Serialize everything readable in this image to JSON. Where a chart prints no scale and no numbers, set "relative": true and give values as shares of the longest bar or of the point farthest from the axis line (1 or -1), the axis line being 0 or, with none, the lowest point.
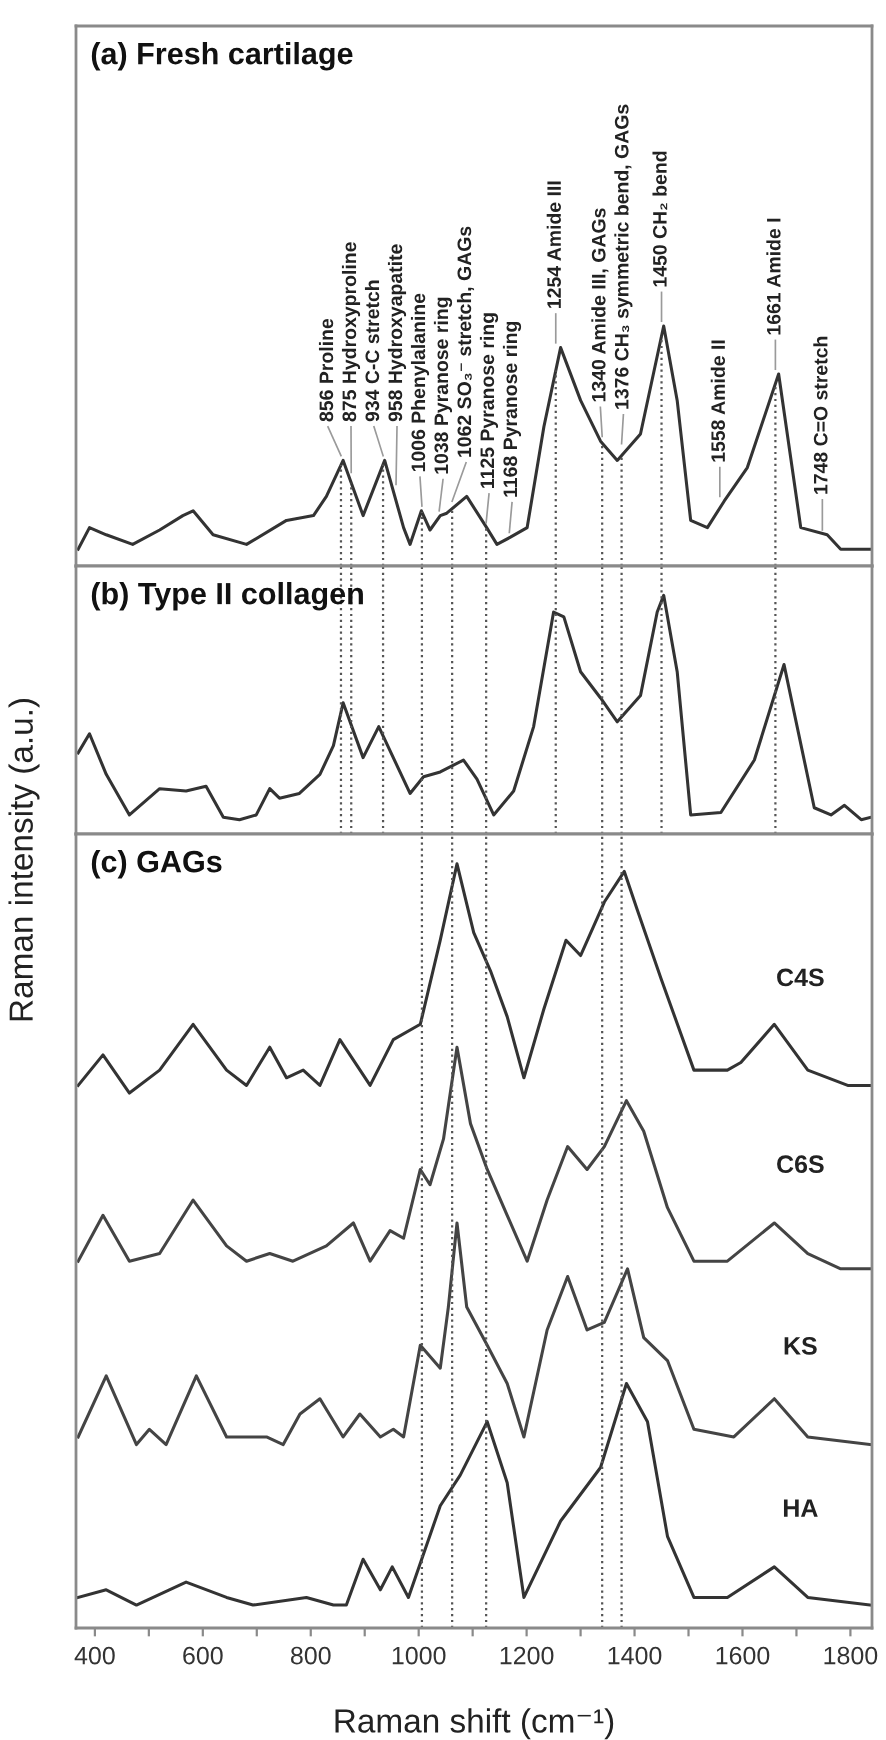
{
  "chart_data": [
    {
      "type": "line",
      "title": "(a) Fresh cartilage",
      "relative": true,
      "tick_labels": false,
      "xlim": [
        365,
        1840
      ],
      "x": [
        369,
        390,
        421,
        470,
        520,
        563,
        582,
        619,
        681,
        755,
        805,
        829,
        860,
        897,
        937,
        972,
        984,
        1005,
        1021,
        1040,
        1052,
        1089,
        1126,
        1145,
        1170,
        1201,
        1232,
        1263,
        1300,
        1337,
        1368,
        1411,
        1454,
        1479,
        1504,
        1535,
        1566,
        1609,
        1667,
        1708,
        1757,
        1782,
        1838
      ],
      "series": [
        {
          "color": "#333333",
          "values": [
            0.07,
            0.16,
            0.13,
            0.09,
            0.15,
            0.21,
            0.23,
            0.13,
            0.09,
            0.19,
            0.21,
            0.29,
            0.44,
            0.21,
            0.44,
            0.16,
            0.09,
            0.23,
            0.15,
            0.21,
            0.22,
            0.29,
            0.16,
            0.09,
            0.12,
            0.16,
            0.58,
            0.91,
            0.69,
            0.52,
            0.44,
            0.55,
            1.0,
            0.69,
            0.19,
            0.16,
            0.27,
            0.41,
            0.8,
            0.16,
            0.13,
            0.07,
            0.07
          ]
        }
      ],
      "annotations": [
        {
          "text": "856 Proline",
          "x": 856,
          "y": 0.44
        },
        {
          "text": "875 Hydroxyproline",
          "x": 875,
          "y": 0.37
        },
        {
          "text": "934 C-C stretch",
          "x": 934,
          "y": 0.44
        },
        {
          "text": "958 Hydroxyapatite",
          "x": 958,
          "y": 0.32
        },
        {
          "text": "1006 Phenylalanine",
          "x": 1006,
          "y": 0.23
        },
        {
          "text": "1038 Pyranose ring",
          "x": 1038,
          "y": 0.21
        },
        {
          "text": "1062 SO₃⁻ stretch, GAGs",
          "x": 1062,
          "y": 0.25
        },
        {
          "text": "1125 Pyranose ring",
          "x": 1125,
          "y": 0.16
        },
        {
          "text": "1168 Pyranose ring",
          "x": 1168,
          "y": 0.12
        },
        {
          "text": "1254 Amide III",
          "x": 1254,
          "y": 0.91
        },
        {
          "text": "1340 Amide III, GAGs",
          "x": 1340,
          "y": 0.52
        },
        {
          "text": "1376 CH₃ symmetric bend, GAGs",
          "x": 1376,
          "y": 0.49
        },
        {
          "text": "1450 CH₂ bend",
          "x": 1450,
          "y": 1.0
        },
        {
          "text": "1558 Amide II",
          "x": 1558,
          "y": 0.27
        },
        {
          "text": "1661 Amide I",
          "x": 1661,
          "y": 0.8
        },
        {
          "text": "1748 C=O stretch",
          "x": 1748,
          "y": 0.13
        }
      ],
      "ref_lines": [
        {
          "axis": "x",
          "value": 856,
          "color": "#555555",
          "line_style": "dotted"
        },
        {
          "axis": "x",
          "value": 875,
          "color": "#555555",
          "line_style": "dotted"
        },
        {
          "axis": "x",
          "value": 934,
          "color": "#555555",
          "line_style": "dotted"
        },
        {
          "axis": "x",
          "value": 1006,
          "color": "#555555",
          "line_style": "dotted"
        },
        {
          "axis": "x",
          "value": 1062,
          "color": "#555555",
          "line_style": "dotted"
        },
        {
          "axis": "x",
          "value": 1125,
          "color": "#555555",
          "line_style": "dotted"
        },
        {
          "axis": "x",
          "value": 1254,
          "color": "#555555",
          "line_style": "dotted"
        },
        {
          "axis": "x",
          "value": 1340,
          "color": "#555555",
          "line_style": "dotted"
        },
        {
          "axis": "x",
          "value": 1376,
          "color": "#555555",
          "line_style": "dotted"
        },
        {
          "axis": "x",
          "value": 1450,
          "color": "#555555",
          "line_style": "dotted"
        },
        {
          "axis": "x",
          "value": 1661,
          "color": "#555555",
          "line_style": "dotted"
        }
      ]
    },
    {
      "type": "line",
      "title": "(b) Type II collagen",
      "ylabel": "Raman intensity (a.u.)",
      "relative": true,
      "tick_labels": false,
      "xlim": [
        365,
        1840
      ],
      "x": [
        369,
        390,
        421,
        464,
        520,
        569,
        606,
        638,
        668,
        699,
        724,
        742,
        779,
        817,
        842,
        860,
        897,
        926,
        984,
        1009,
        1040,
        1083,
        1108,
        1139,
        1176,
        1213,
        1250,
        1269,
        1300,
        1337,
        1368,
        1411,
        1442,
        1454,
        1479,
        1504,
        1560,
        1622,
        1677,
        1733,
        1764,
        1789,
        1820,
        1838
      ],
      "series": [
        {
          "color": "#333333",
          "values": [
            0.34,
            0.42,
            0.25,
            0.08,
            0.19,
            0.18,
            0.2,
            0.07,
            0.06,
            0.08,
            0.19,
            0.15,
            0.17,
            0.25,
            0.37,
            0.55,
            0.32,
            0.45,
            0.17,
            0.24,
            0.26,
            0.31,
            0.23,
            0.08,
            0.18,
            0.45,
            0.93,
            0.91,
            0.68,
            0.57,
            0.47,
            0.58,
            0.93,
            1.0,
            0.68,
            0.08,
            0.09,
            0.31,
            0.71,
            0.11,
            0.08,
            0.12,
            0.06,
            0.07
          ]
        }
      ],
      "ref_lines": [
        {
          "axis": "x",
          "value": 856,
          "color": "#555555",
          "line_style": "dotted"
        },
        {
          "axis": "x",
          "value": 875,
          "color": "#555555",
          "line_style": "dotted"
        },
        {
          "axis": "x",
          "value": 934,
          "color": "#555555",
          "line_style": "dotted"
        },
        {
          "axis": "x",
          "value": 1006,
          "color": "#555555",
          "line_style": "dotted"
        },
        {
          "axis": "x",
          "value": 1062,
          "color": "#555555",
          "line_style": "dotted"
        },
        {
          "axis": "x",
          "value": 1125,
          "color": "#555555",
          "line_style": "dotted"
        },
        {
          "axis": "x",
          "value": 1254,
          "color": "#555555",
          "line_style": "dotted"
        },
        {
          "axis": "x",
          "value": 1340,
          "color": "#555555",
          "line_style": "dotted"
        },
        {
          "axis": "x",
          "value": 1376,
          "color": "#555555",
          "line_style": "dotted"
        },
        {
          "axis": "x",
          "value": 1450,
          "color": "#555555",
          "line_style": "dotted"
        },
        {
          "axis": "x",
          "value": 1661,
          "color": "#555555",
          "line_style": "dotted"
        }
      ]
    },
    {
      "type": "line",
      "title": "(c) GAGs",
      "xlabel": "Raman shift (cm⁻¹)",
      "relative": true,
      "tick_labels": "x",
      "xlim": [
        365,
        1840
      ],
      "xticks": [
        400,
        {
          "value": 500,
          "label": null
        },
        600,
        {
          "value": 700,
          "label": null
        },
        800,
        {
          "value": 900,
          "label": null
        },
        1000,
        {
          "value": 1100,
          "label": null
        },
        1200,
        {
          "value": 1300,
          "label": null
        },
        1400,
        {
          "value": 1500,
          "label": null
        },
        1600,
        {
          "value": 1700,
          "label": null
        },
        1800
      ],
      "series": [
        {
          "name": "C4S",
          "color": "#333333",
          "x": [
            369,
            415,
            464,
            520,
            582,
            644,
            681,
            724,
            755,
            786,
            817,
            854,
            910,
            953,
            1003,
            1040,
            1071,
            1102,
            1133,
            1164,
            1195,
            1232,
            1273,
            1300,
            1344,
            1381,
            1405,
            1449,
            1510,
            1572,
            1597,
            1659,
            1721,
            1795,
            1838
          ],
          "values": [
            0.71,
            0.75,
            0.7,
            0.73,
            0.79,
            0.73,
            0.71,
            0.76,
            0.72,
            0.73,
            0.71,
            0.77,
            0.71,
            0.77,
            0.79,
            0.9,
            1.0,
            0.91,
            0.86,
            0.8,
            0.72,
            0.81,
            0.9,
            0.88,
            0.95,
            0.99,
            0.94,
            0.85,
            0.73,
            0.73,
            0.74,
            0.79,
            0.73,
            0.71,
            0.71
          ]
        },
        {
          "name": "C6S",
          "color": "#444444",
          "x": [
            369,
            415,
            464,
            520,
            582,
            644,
            681,
            724,
            767,
            829,
            879,
            910,
            947,
            972,
            1003,
            1021,
            1046,
            1071,
            1096,
            1127,
            1164,
            1201,
            1238,
            1276,
            1312,
            1344,
            1385,
            1417,
            1461,
            1510,
            1572,
            1659,
            1721,
            1782,
            1838
          ],
          "values": [
            0.48,
            0.54,
            0.48,
            0.49,
            0.56,
            0.5,
            0.48,
            0.49,
            0.48,
            0.5,
            0.53,
            0.48,
            0.52,
            0.51,
            0.6,
            0.58,
            0.64,
            0.76,
            0.66,
            0.6,
            0.54,
            0.48,
            0.56,
            0.63,
            0.6,
            0.63,
            0.69,
            0.65,
            0.55,
            0.48,
            0.48,
            0.53,
            0.49,
            0.47,
            0.47
          ]
        },
        {
          "name": "KS",
          "color": "#444444",
          "x": [
            369,
            421,
            477,
            501,
            532,
            588,
            644,
            718,
            749,
            780,
            817,
            860,
            891,
            929,
            953,
            972,
            1003,
            1040,
            1055,
            1071,
            1089,
            1127,
            1164,
            1195,
            1238,
            1276,
            1312,
            1344,
            1387,
            1417,
            1461,
            1510,
            1584,
            1659,
            1721,
            1838
          ],
          "values": [
            0.25,
            0.33,
            0.24,
            0.26,
            0.24,
            0.33,
            0.25,
            0.25,
            0.24,
            0.28,
            0.3,
            0.25,
            0.28,
            0.25,
            0.26,
            0.25,
            0.37,
            0.34,
            0.42,
            0.53,
            0.42,
            0.37,
            0.32,
            0.25,
            0.39,
            0.46,
            0.39,
            0.4,
            0.47,
            0.38,
            0.35,
            0.26,
            0.25,
            0.3,
            0.25,
            0.24
          ]
        },
        {
          "name": "HA",
          "color": "#333333",
          "x": [
            369,
            421,
            477,
            569,
            644,
            693,
            792,
            842,
            866,
            897,
            929,
            951,
            981,
            1040,
            1077,
            1127,
            1164,
            1195,
            1263,
            1337,
            1385,
            1424,
            1461,
            1510,
            1572,
            1659,
            1721,
            1838
          ],
          "values": [
            0.04,
            0.05,
            0.03,
            0.06,
            0.04,
            0.03,
            0.04,
            0.03,
            0.03,
            0.09,
            0.05,
            0.08,
            0.04,
            0.16,
            0.2,
            0.27,
            0.19,
            0.04,
            0.14,
            0.21,
            0.32,
            0.27,
            0.12,
            0.04,
            0.04,
            0.08,
            0.04,
            0.03
          ]
        }
      ],
      "ref_lines": [
        {
          "axis": "x",
          "value": 1006,
          "color": "#555555",
          "line_style": "dotted"
        },
        {
          "axis": "x",
          "value": 1062,
          "color": "#555555",
          "line_style": "dotted"
        },
        {
          "axis": "x",
          "value": 1125,
          "color": "#555555",
          "line_style": "dotted"
        },
        {
          "axis": "x",
          "value": 1340,
          "color": "#555555",
          "line_style": "dotted"
        },
        {
          "axis": "x",
          "value": 1376,
          "color": "#555555",
          "line_style": "dotted"
        }
      ]
    }
  ]
}
